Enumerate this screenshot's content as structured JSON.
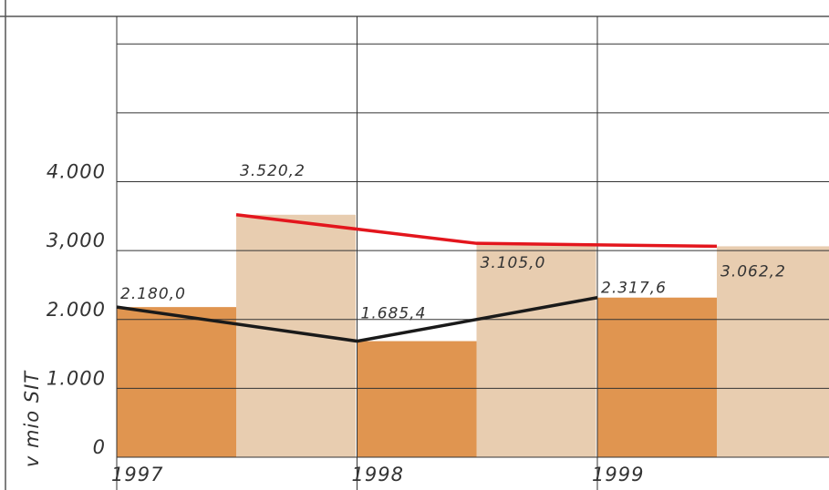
{
  "chart_data": {
    "type": "bar",
    "y_label": "v mio SIT",
    "categories": [
      "1997",
      "1998",
      "1999"
    ],
    "series": [
      {
        "color": "#e09550",
        "line_color": "#1a1a1a",
        "values": [
          2180.0,
          1685.4,
          2317.6
        ],
        "value_labels": [
          "2.180,0",
          "1.685,4",
          "2.317,6"
        ]
      },
      {
        "color": "#e8cdb0",
        "line_color": "#e3161d",
        "values": [
          3520.2,
          3105.0,
          3062.2
        ],
        "value_labels": [
          "3.520,2",
          "3.105,0",
          "3.062,2"
        ]
      }
    ],
    "ylim": [
      0,
      6400
    ],
    "yticks": [
      {
        "value": 0,
        "label": "0"
      },
      {
        "value": 1000,
        "label": "1.000"
      },
      {
        "value": 2000,
        "label": "2.000"
      },
      {
        "value": 3000,
        "label": "3,000"
      },
      {
        "value": 4000,
        "label": "4.000"
      },
      {
        "value": 5000,
        "label": null
      },
      {
        "value": 6000,
        "label": null
      }
    ],
    "grid": true
  }
}
